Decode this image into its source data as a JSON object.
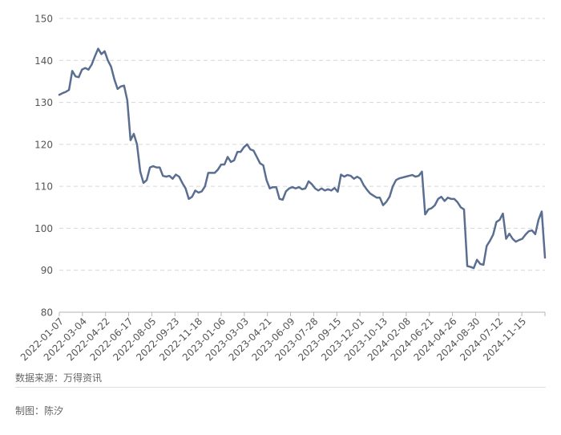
{
  "chart_data": {
    "type": "line",
    "title": "",
    "xlabel": "",
    "ylabel": "",
    "ylim": [
      80,
      150
    ],
    "yticks": [
      80,
      90,
      100,
      110,
      120,
      130,
      140,
      150
    ],
    "grid": true,
    "line_color": "#5a6e91",
    "x_tick_labels": [
      "2022-01-07",
      "2022-03-04",
      "2022-04-22",
      "2022-06-17",
      "2022-08-05",
      "2022-09-23",
      "2022-11-18",
      "2023-01-06",
      "2023-03-03",
      "2023-04-21",
      "2023-06-09",
      "2023-07-28",
      "2023-09-15",
      "2023-12-01",
      "2023-10-13",
      "2024-02-08",
      "2024-06-21",
      "2024-04-26",
      "2024-08-30",
      "2024-07-12",
      "2024-11-15"
    ],
    "series": [
      {
        "values": [
          131.8,
          132.2,
          132.5,
          133,
          137.5,
          136.2,
          136,
          137.8,
          138.2,
          137.8,
          139,
          141,
          142.8,
          141.5,
          142.2,
          140,
          138.5,
          135.5,
          133.2,
          133.8,
          134,
          130.5,
          121,
          122.5,
          120,
          113.5,
          110.8,
          111.5,
          114.5,
          114.8,
          114.5,
          114.5,
          112.5,
          112.3,
          112.5,
          111.8,
          112.8,
          112.3,
          110.8,
          109.5,
          107,
          107.5,
          109,
          108.5,
          108.8,
          110,
          113.2,
          113.2,
          113.2,
          114,
          115.2,
          115.2,
          117,
          115.8,
          116.2,
          118.2,
          118.2,
          119.3,
          120,
          118.8,
          118.5,
          117,
          115.5,
          115,
          111.5,
          109.5,
          109.8,
          109.8,
          107,
          106.8,
          108.8,
          109.5,
          109.8,
          109.5,
          109.8,
          109.3,
          109.5,
          111.2,
          110.5,
          109.5,
          109,
          109.5,
          109,
          109.3,
          109,
          109.6,
          108.7,
          112.8,
          112.3,
          112.7,
          112.5,
          111.8,
          112.3,
          111.8,
          110.3,
          109.2,
          108.3,
          107.8,
          107.3,
          107.3,
          105.5,
          106.3,
          107.5,
          110,
          111.5,
          111.9,
          112.1,
          112.3,
          112.5,
          112.7,
          112.3,
          112.5,
          113.5,
          103.3,
          104.5,
          104.8,
          105.5,
          107,
          107.5,
          106.5,
          107.3,
          107,
          107,
          106.2,
          105,
          104.5,
          91,
          90.8,
          90.5,
          92.5,
          91.5,
          91.3,
          95.8,
          97,
          98.5,
          101.5,
          102,
          103.5,
          97.5,
          98.7,
          97.5,
          96.8,
          97.2,
          97.5,
          98.5,
          99.3,
          99.5,
          98.6,
          102,
          104,
          93
        ]
      }
    ]
  },
  "footer": {
    "source": "数据来源：万得资讯",
    "author": "制图：陈汐"
  }
}
